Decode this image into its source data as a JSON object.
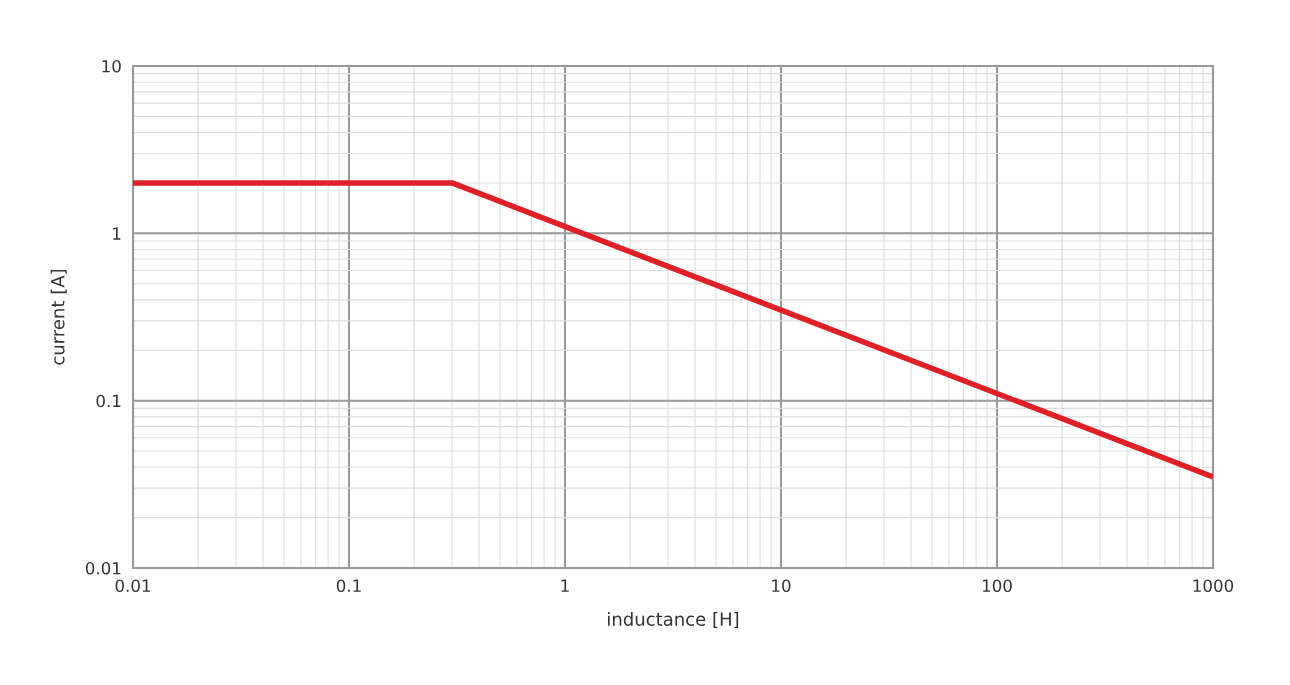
{
  "chart_data": {
    "type": "line",
    "xlabel": "inductance [H]",
    "ylabel": "current [A]",
    "log": "xy",
    "series": [
      {
        "color": "#e02027",
        "x": [
          0.01,
          0.3,
          1000
        ],
        "values": [
          2,
          2,
          0.035
        ]
      }
    ],
    "xlim": [
      0.01,
      1000
    ],
    "ylim": [
      0.01,
      10
    ],
    "xticks": [
      0.01,
      0.1,
      1,
      10,
      100,
      1000
    ],
    "yticks": [
      0.01,
      0.1,
      1,
      10
    ],
    "grid": true,
    "marker": "none",
    "line_style": "solid"
  }
}
